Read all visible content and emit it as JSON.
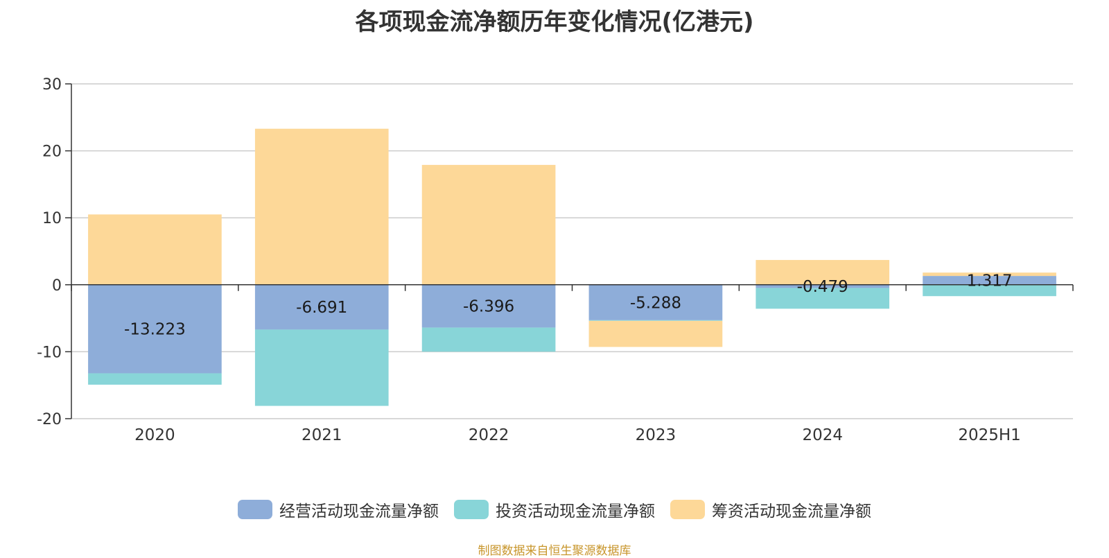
{
  "chart_data": {
    "type": "bar",
    "stacked": true,
    "title": "各项现金流净额历年变化情况(亿港元)",
    "categories": [
      "2020",
      "2021",
      "2022",
      "2023",
      "2024",
      "2025H1"
    ],
    "series": [
      {
        "name": "经营活动现金流量净额",
        "color": "#8eadd9",
        "values": [
          -13.223,
          -6.691,
          -6.396,
          -5.288,
          -0.479,
          1.317
        ],
        "labels": [
          "-13.223",
          "-6.691",
          "-6.396",
          "-5.288",
          "-0.479",
          "1.317"
        ]
      },
      {
        "name": "投资活动现金流量净额",
        "color": "#88d5d8",
        "values": [
          -1.7,
          -11.4,
          -3.6,
          -0.1,
          -3.1,
          -1.7
        ]
      },
      {
        "name": "筹资活动现金流量净额",
        "color": "#fdd898",
        "values": [
          10.5,
          23.3,
          17.9,
          -3.9,
          3.7,
          0.5
        ]
      }
    ],
    "ylim": [
      -20,
      30
    ],
    "yticks": [
      -20,
      -10,
      0,
      10,
      20,
      30
    ],
    "xlabel": "",
    "ylabel": "",
    "grid": true,
    "legend_position": "bottom-center"
  },
  "source_note": "制图数据来自恒生聚源数据库"
}
